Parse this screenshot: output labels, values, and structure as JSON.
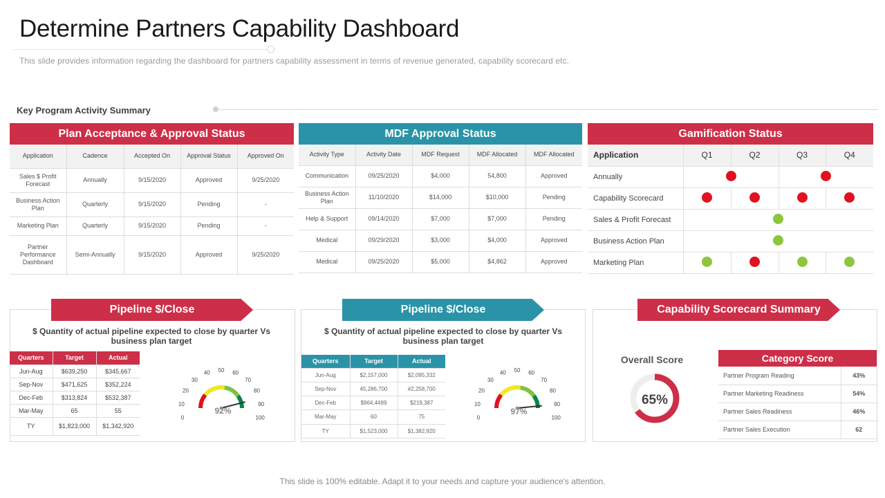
{
  "title": "Determine Partners Capability Dashboard",
  "subtitle": "This slide provides  information  regarding  the  dashboard  for  partners  capability  assessment  in  terms  of  revenue   generated,  capability  scorecard  etc.",
  "section_title": "Key Program Activity Summary",
  "plan": {
    "header": "Plan Acceptance & Approval Status",
    "columns": [
      "Application",
      "Cadence",
      "Accepted On",
      "Approval Status",
      "Approved On"
    ],
    "rows": [
      [
        "Sales $ Profit Forecast",
        "Annually",
        "9/15/2020",
        "Approved",
        "9/25/2020"
      ],
      [
        "Business Action Plan",
        "Quarterly",
        "9/15/2020",
        "Pending",
        "-"
      ],
      [
        "Marketing Plan",
        "Quarterly",
        "9/15/2020",
        "Pending",
        "-"
      ],
      [
        "Partner Performance Dashboard",
        "Semi-Annually",
        "9/15/2020",
        "Approved",
        "9/25/2020"
      ]
    ]
  },
  "mdf": {
    "header": "MDF Approval Status",
    "columns": [
      "Activity Type",
      "Activity Date",
      "MDF Request",
      "MDF Allocated",
      "MDF Allocated"
    ],
    "rows": [
      [
        "Communication",
        "09/25/2020",
        "$4,000",
        "54,800",
        "Approved"
      ],
      [
        "Business Action Plan",
        "11/10/2020",
        "$14,000",
        "$10,000",
        "Pending"
      ],
      [
        "Help & Support",
        "09/14/2020",
        "$7,000",
        "$7,000",
        "Pending"
      ],
      [
        "Medical",
        "09/29/2020",
        "$3,000",
        "$4,000",
        "Approved"
      ],
      [
        "Medical",
        "09/25/2020",
        "$5,000",
        "$4,862",
        "Approved"
      ]
    ]
  },
  "gamification": {
    "header": "Gamification Status",
    "columns": [
      "Application",
      "Q1",
      "Q2",
      "Q3",
      "Q4"
    ],
    "rows": [
      {
        "label": "Annually",
        "dots": [
          "",
          "red-between-q1-q2",
          "",
          "red-between-q3-q4"
        ]
      },
      {
        "label": "Capability Scorecard",
        "dots": [
          "red",
          "red",
          "red",
          "red"
        ]
      },
      {
        "label": "Sales & Profit Forecast",
        "dots": [
          "",
          "green-center",
          "",
          ""
        ]
      },
      {
        "label": "Business Action Plan",
        "dots": [
          "",
          "green-center",
          "",
          ""
        ]
      },
      {
        "label": "Marketing Plan",
        "dots": [
          "green",
          "red",
          "green",
          "green"
        ]
      }
    ],
    "colors": {
      "red": "#e0121f",
      "green": "#8cc63e"
    }
  },
  "pipeline1": {
    "header": "Pipeline $/Close",
    "description": "$ Quantity of actual pipeline expected to close by quarter Vs business plan target",
    "columns": [
      "Quarters",
      "Target",
      "Actual"
    ],
    "rows": [
      [
        "Jun-Aug",
        "$639,250",
        "$345,667"
      ],
      [
        "Sep-Nov",
        "$471,625",
        "$352,224"
      ],
      [
        "Dec-Feb",
        "$313,824",
        "$532,387"
      ],
      [
        "Mar-May",
        "65",
        "55"
      ],
      [
        "TY",
        "$1,823,000",
        "$1,342,920"
      ]
    ],
    "gauge_value": "92%",
    "gauge_percent": 92,
    "gauge_ticks": [
      "0",
      "10",
      "20",
      "30",
      "40",
      "50",
      "60",
      "70",
      "80",
      "90",
      "100"
    ]
  },
  "pipeline2": {
    "header": "Pipeline $/Close",
    "description": "$ Quantity of actual pipeline expected to close by quarter Vs business plan target",
    "columns": [
      "Quarters",
      "Target",
      "Actual"
    ],
    "rows": [
      [
        "Jun-Aug",
        "$2,157,000",
        "$2,095,332"
      ],
      [
        "Sep-Nov",
        "45,286,700",
        "#2,258,700"
      ],
      [
        "Dec-Feb",
        "$964,4499",
        "$219,387"
      ],
      [
        "Mar-May",
        "60",
        "75"
      ],
      [
        "TY",
        "$1,523,000",
        "$1,382,920"
      ]
    ],
    "gauge_value": "97%",
    "gauge_percent": 97,
    "gauge_ticks": [
      "0",
      "10",
      "20",
      "30",
      "40",
      "50",
      "60",
      "70",
      "80",
      "90",
      "100"
    ]
  },
  "scorecard": {
    "header": "Capability Scorecard Summary",
    "overall_label": "Overall Score",
    "overall_value": "65%",
    "overall_percent": 65,
    "category_header": "Category Score",
    "categories": [
      [
        "Partner Program  Reading",
        "43%"
      ],
      [
        "Partner Marketing  Readiness",
        "54%"
      ],
      [
        "Partner Sales Readiness",
        "46%"
      ],
      [
        "Partner Sales Execution",
        "62"
      ]
    ]
  },
  "footer": "This slide is 100% editable. Adapt it to your needs and capture your audience's attention."
}
